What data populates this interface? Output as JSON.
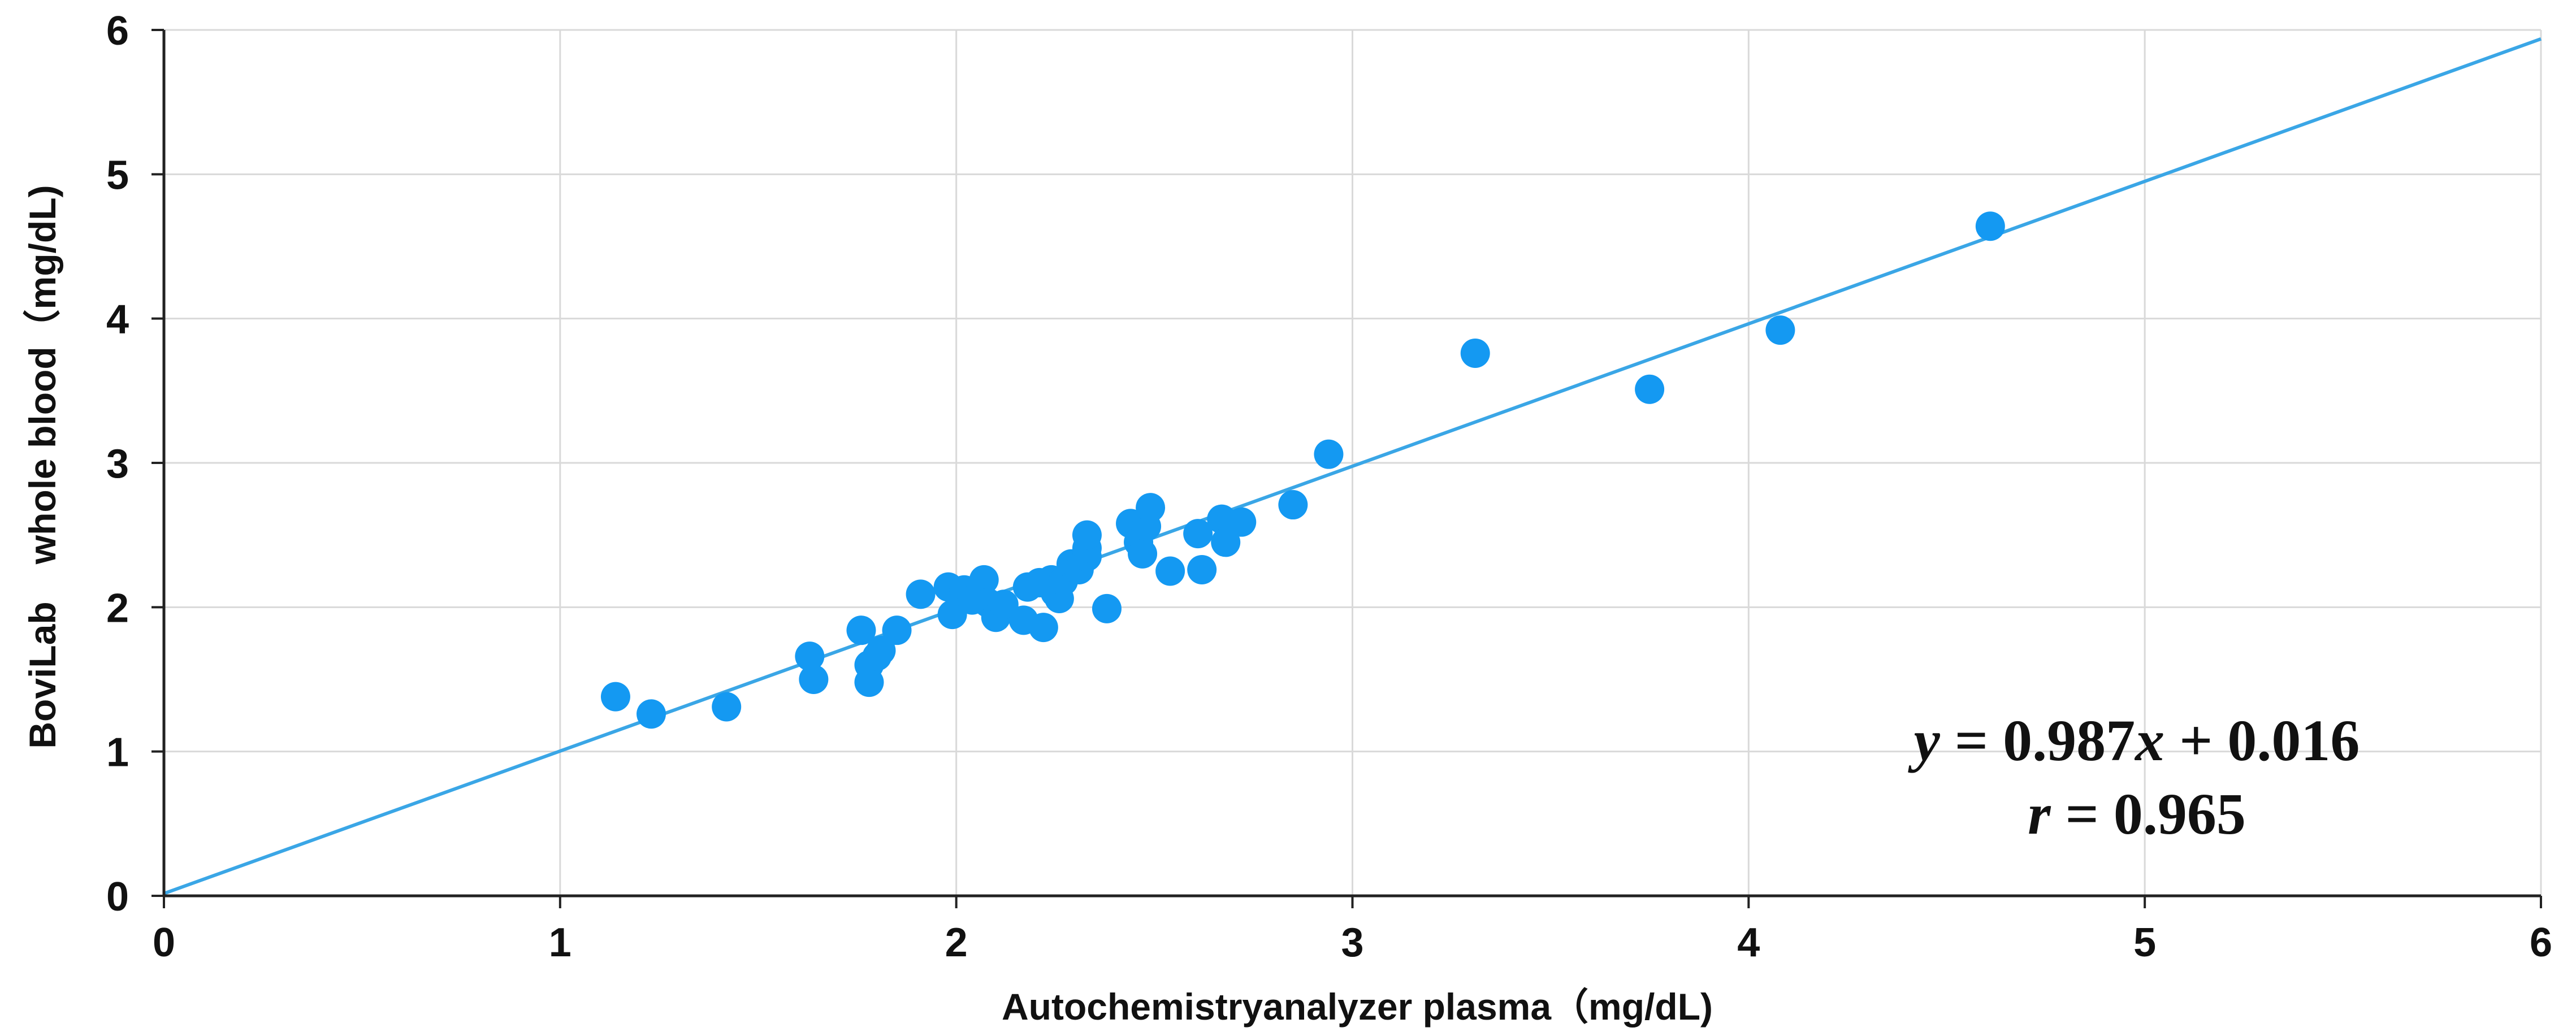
{
  "chart_data": {
    "type": "scatter",
    "title": "",
    "xlabel": "Autochemistryanalyzer plasma（mg/dL)",
    "ylabel": "BoviLab　whole blood（mg/dL)",
    "xlim": [
      0,
      6
    ],
    "ylim": [
      0,
      6
    ],
    "xticks": [
      "0",
      "1",
      "2",
      "3",
      "4",
      "5",
      "6"
    ],
    "yticks": [
      "0",
      "1",
      "2",
      "3",
      "4",
      "5",
      "6"
    ],
    "grid": true,
    "legend": "none",
    "colors": {
      "points": "#1499f2",
      "line": "#3aa6e6",
      "grid": "#d9d9d9",
      "axis": "#222222"
    },
    "series": [
      {
        "points": [
          [
            1.14,
            1.38
          ],
          [
            1.23,
            1.26
          ],
          [
            1.42,
            1.31
          ],
          [
            1.63,
            1.66
          ],
          [
            1.64,
            1.5
          ],
          [
            1.76,
            1.84
          ],
          [
            1.78,
            1.48
          ],
          [
            1.78,
            1.6
          ],
          [
            1.8,
            1.66
          ],
          [
            1.81,
            1.7
          ],
          [
            1.85,
            1.84
          ],
          [
            1.91,
            2.09
          ],
          [
            1.98,
            2.14
          ],
          [
            1.99,
            1.95
          ],
          [
            2.02,
            2.12
          ],
          [
            2.04,
            2.05
          ],
          [
            2.07,
            2.19
          ],
          [
            2.08,
            2.03
          ],
          [
            2.1,
            1.93
          ],
          [
            2.12,
            2.02
          ],
          [
            2.17,
            1.91
          ],
          [
            2.18,
            2.14
          ],
          [
            2.21,
            2.17
          ],
          [
            2.22,
            1.86
          ],
          [
            2.24,
            2.19
          ],
          [
            2.25,
            2.1
          ],
          [
            2.26,
            2.06
          ],
          [
            2.27,
            2.18
          ],
          [
            2.29,
            2.3
          ],
          [
            2.31,
            2.26
          ],
          [
            2.33,
            2.35
          ],
          [
            2.33,
            2.41
          ],
          [
            2.33,
            2.5
          ],
          [
            2.38,
            1.99
          ],
          [
            2.44,
            2.58
          ],
          [
            2.46,
            2.45
          ],
          [
            2.47,
            2.37
          ],
          [
            2.48,
            2.56
          ],
          [
            2.49,
            2.69
          ],
          [
            2.54,
            2.25
          ],
          [
            2.61,
            2.51
          ],
          [
            2.62,
            2.26
          ],
          [
            2.67,
            2.61
          ],
          [
            2.68,
            2.45
          ],
          [
            2.72,
            2.59
          ],
          [
            2.85,
            2.71
          ],
          [
            2.94,
            3.06
          ],
          [
            3.31,
            3.76
          ],
          [
            3.75,
            3.51
          ],
          [
            4.08,
            3.92
          ],
          [
            4.61,
            4.64
          ]
        ]
      }
    ],
    "fit": {
      "slope": 0.987,
      "intercept": 0.016,
      "x_range": [
        0,
        6
      ]
    },
    "annotations": {
      "equation_y": "y",
      "equation_eq": " = 0.987",
      "equation_x": "x",
      "equation_rest": " + 0.016",
      "corr_r": "r",
      "corr_rest": " = 0.965"
    }
  }
}
